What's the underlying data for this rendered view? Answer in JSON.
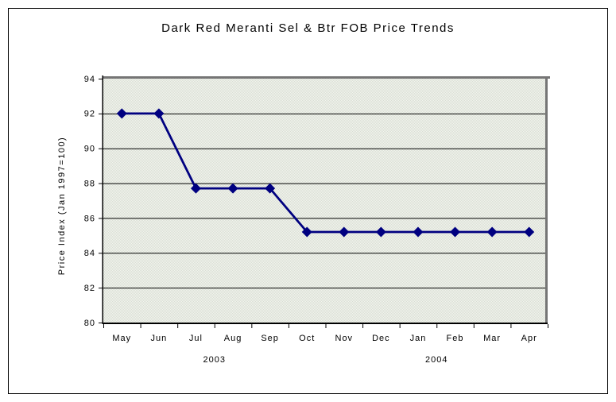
{
  "chart_data": {
    "type": "line",
    "title": "Dark Red Meranti Sel & Btr FOB Price Trends",
    "ylabel": "Price Index (Jan 1997=100)",
    "xlabel": "",
    "categories": [
      "May",
      "Jun",
      "Jul",
      "Aug",
      "Sep",
      "Oct",
      "Nov",
      "Dec",
      "Jan",
      "Feb",
      "Mar",
      "Apr"
    ],
    "values": [
      92,
      92,
      87.7,
      87.7,
      87.7,
      85.2,
      85.2,
      85.2,
      85.2,
      85.2,
      85.2,
      85.2
    ],
    "ylim": [
      80,
      94
    ],
    "yticks": [
      80,
      82,
      84,
      86,
      88,
      90,
      92,
      94
    ],
    "x_year_groups": [
      {
        "label": "2003",
        "boundary_index": 3
      },
      {
        "label": "2004",
        "boundary_index": 9
      }
    ],
    "grid": true,
    "legend": "none",
    "marker": "diamond",
    "line_color": "#000080",
    "colors": {
      "axis": "#000000",
      "gridline": "#000000",
      "plot_border": "#757575",
      "plot_bg_light": "#f3f5ef",
      "plot_bg_dark": "#d9ded4",
      "figure_bg": "#ffffff",
      "text": "#000000"
    }
  }
}
